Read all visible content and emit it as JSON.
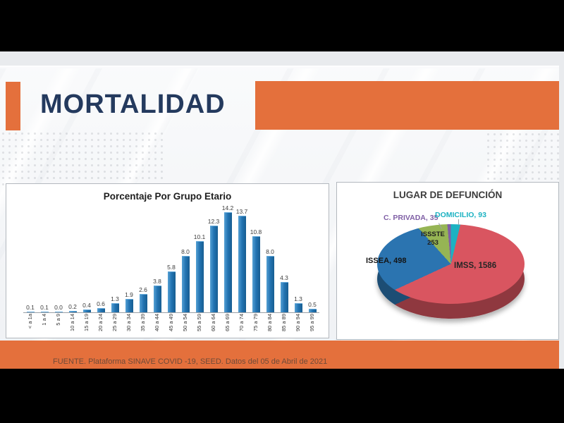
{
  "slide": {
    "title": "MORTALIDAD",
    "footer": "FUENTE. Plataforma SINAVE COVID -19, SEED. Datos del 05 de Abril de 2021"
  },
  "colors": {
    "accent_orange": "#e4703c",
    "title_navy": "#243a5e",
    "bar_blue": "#2374b2"
  },
  "chart_data": [
    {
      "type": "bar",
      "title": "Porcentaje Por Grupo Etario",
      "categories": [
        "< a 1a",
        "1 a 4",
        "5 a 9",
        "10 a 14",
        "15 a 19",
        "20 a 24",
        "25 a 29",
        "30 a 34",
        "35 a 39",
        "40 a 44",
        "45 a 49",
        "50 a 54",
        "55 a 59",
        "60 a 64",
        "65 a 69",
        "70 a 74",
        "75 a 79",
        "80 a 84",
        "85 a 89",
        "90 a 94",
        "95 a 99"
      ],
      "values": [
        0.1,
        0.1,
        0.0,
        0.2,
        0.4,
        0.6,
        1.3,
        1.9,
        2.6,
        3.8,
        5.8,
        8.0,
        10.1,
        12.3,
        14.2,
        13.7,
        10.8,
        8.0,
        4.3,
        1.3,
        0.5
      ],
      "xlabel": "",
      "ylabel": "",
      "ylim": [
        0,
        15
      ],
      "grid": false,
      "value_labels": true,
      "bar_color": "#2374b2",
      "x_label_rotation_deg": 90
    },
    {
      "type": "pie",
      "title": "LUGAR DE DEFUNCIÓN",
      "style": "3d",
      "clockwise_from_top": true,
      "slices": [
        {
          "label": "DOMICILIO",
          "value": 93,
          "color": "#1cb2c2"
        },
        {
          "label": "IMSS",
          "value": 1586,
          "color": "#d95560"
        },
        {
          "label": "ISSEA",
          "value": 498,
          "color": "#2b74b0"
        },
        {
          "label": "ISSSTE",
          "value": 253,
          "color": "#96b554"
        },
        {
          "label": "C. PRIVADA",
          "value": 35,
          "color": "#7f5fa5"
        }
      ],
      "callouts": {
        "c_privada": "C. PRIVADA, 35",
        "domicilio": "DOMICILIO, 93",
        "issste_line1": "ISSSTE",
        "issste_line2": "253",
        "issea": "ISSEA, 498",
        "imss": "IMSS, 1586"
      },
      "callout_colors": {
        "c_privada": "#7f5fa5",
        "domicilio": "#1cb2c2"
      }
    }
  ]
}
